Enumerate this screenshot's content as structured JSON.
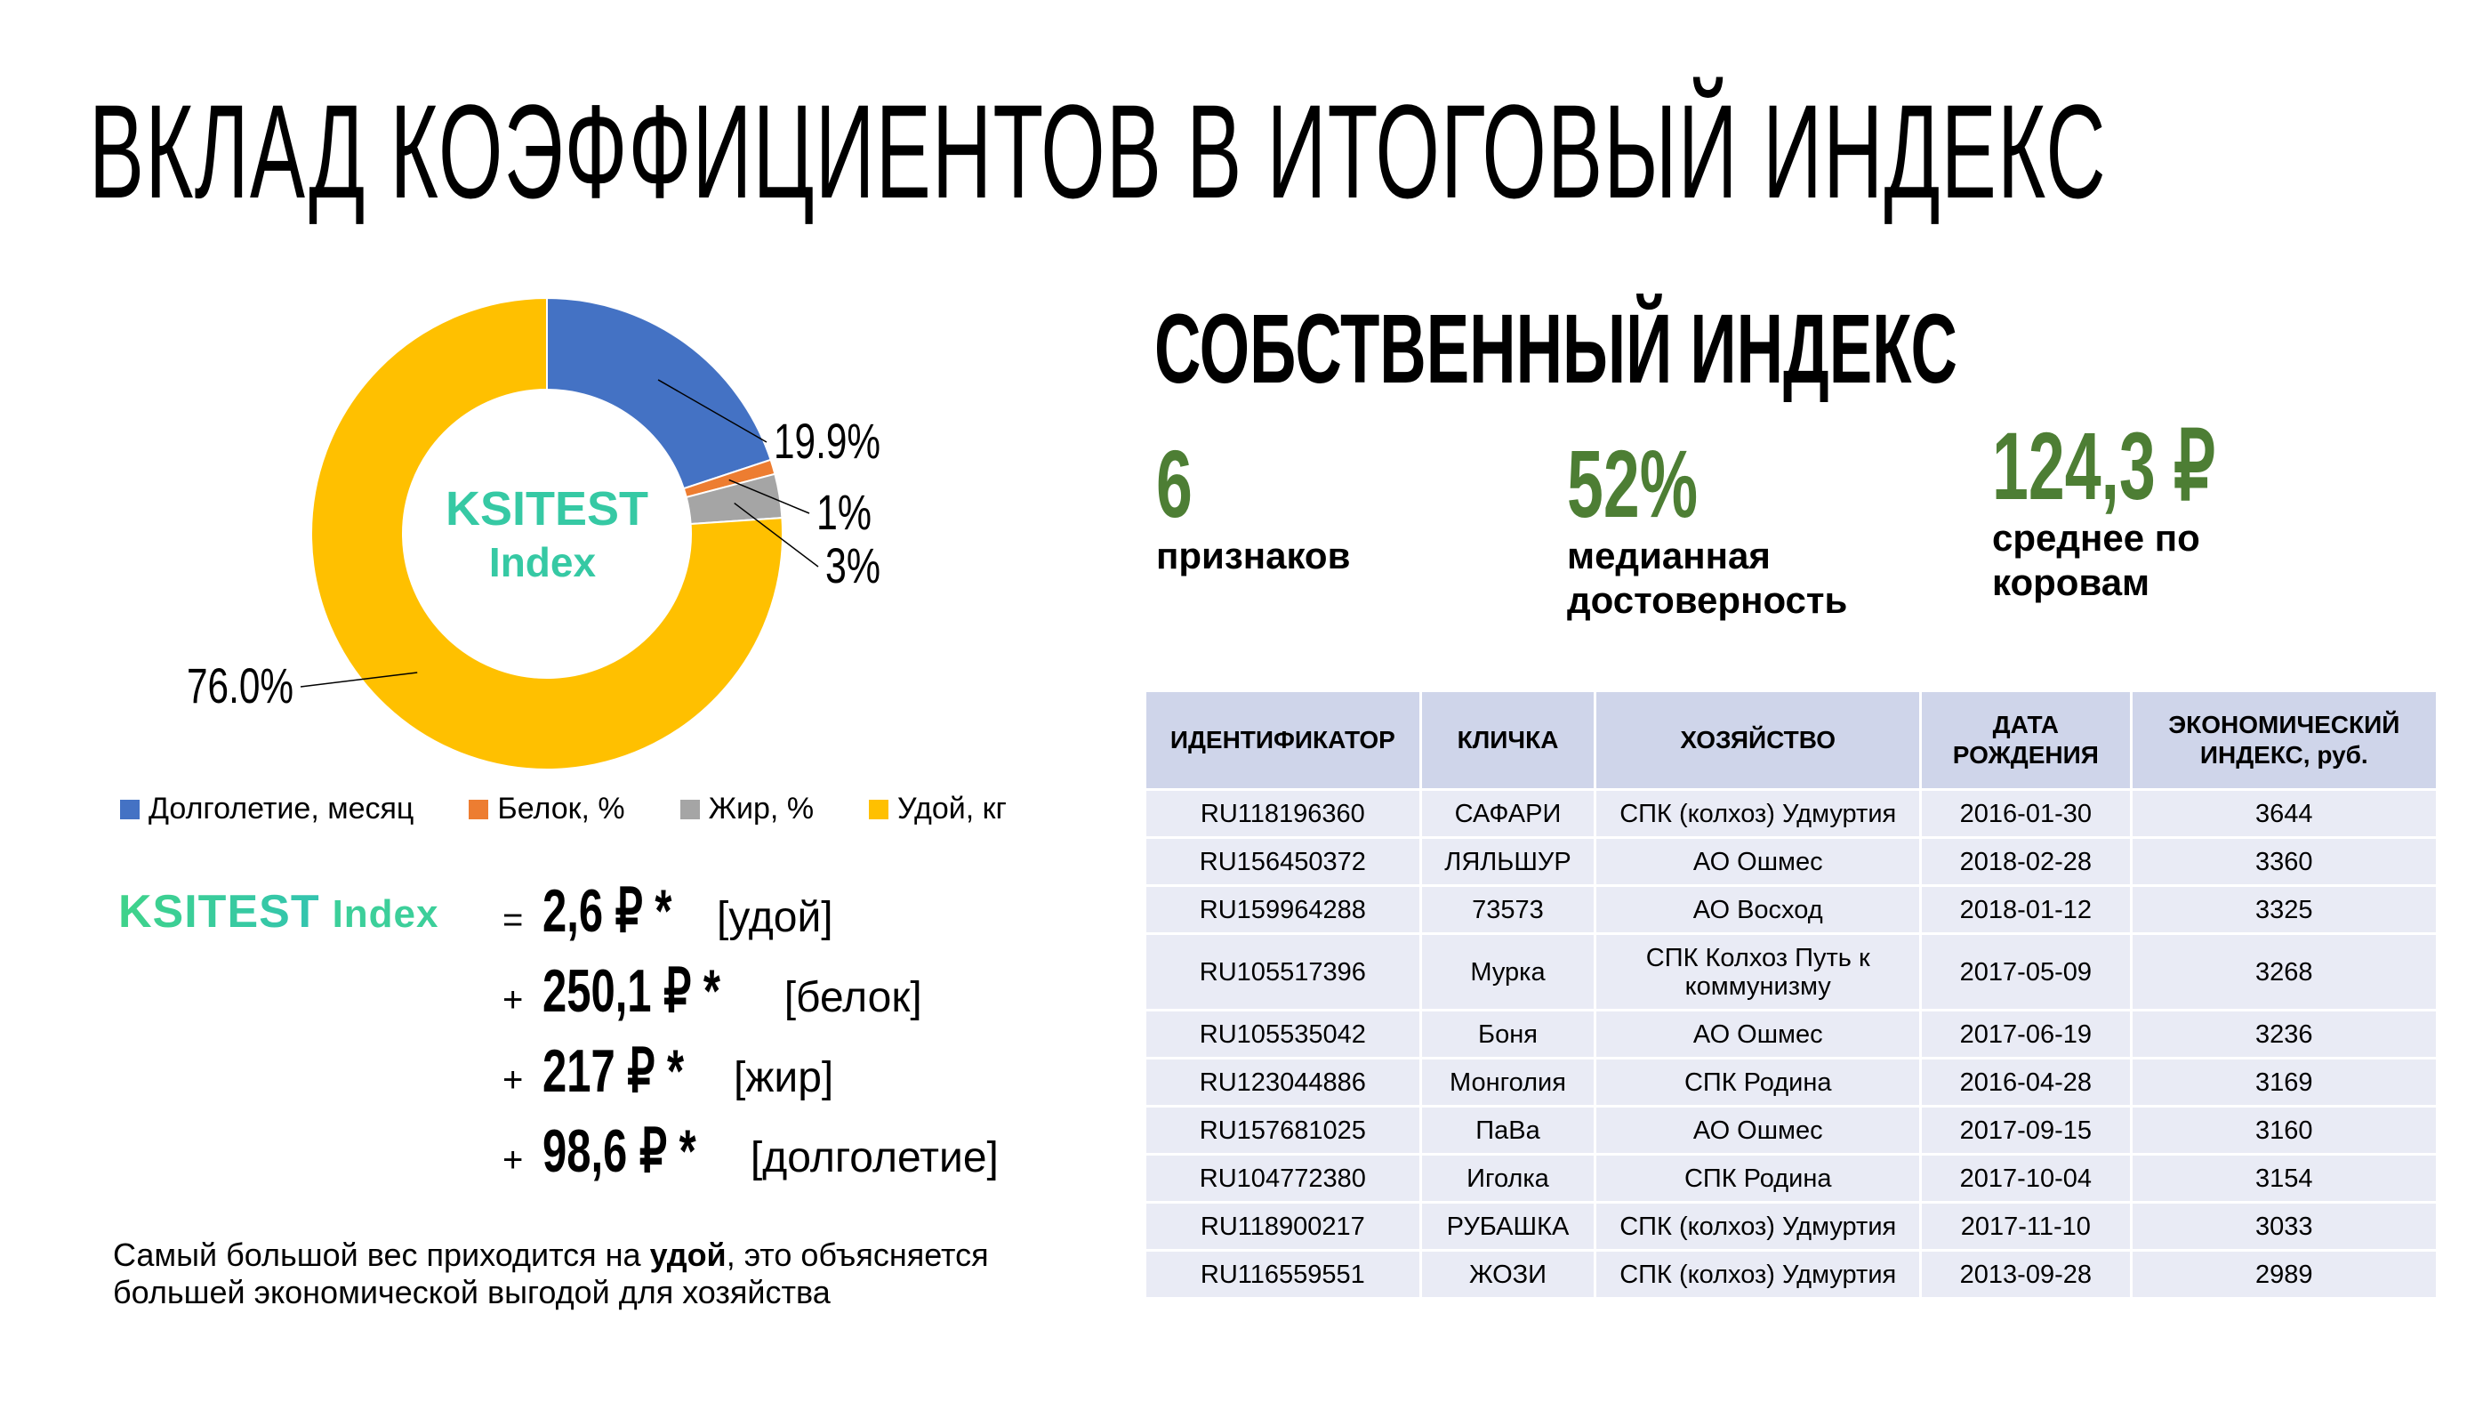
{
  "title": "ВКЛАД КОЭФФИЦИЕНТОВ В ИТОГОВЫЙ ИНДЕКС",
  "chart_data": {
    "type": "pie",
    "donut": true,
    "center_text": [
      "KSITEST",
      "Index"
    ],
    "categories": [
      "Долголетие, месяц",
      "Белок, %",
      "Жир, %",
      "Удой, кг"
    ],
    "values": [
      19.9,
      1,
      3,
      76.0
    ],
    "data_labels": [
      "19.9%",
      "1%",
      "3%",
      "76.0%"
    ],
    "colors": [
      "#4472C4",
      "#ED7D31",
      "#A5A5A5",
      "#FFC000"
    ],
    "legend_position": "bottom"
  },
  "formula": {
    "brand": "KSITEST",
    "brand_suffix": "Index",
    "lines": [
      {
        "op": "=",
        "coef": "2,6 ₽ *",
        "var": "[удой]"
      },
      {
        "op": "+",
        "coef": "250,1 ₽ *",
        "var": "[белок]"
      },
      {
        "op": "+",
        "coef": "217 ₽ *",
        "var": "[жир]"
      },
      {
        "op": "+",
        "coef": "98,6 ₽ *",
        "var": "[долголетие]"
      }
    ]
  },
  "footnote": {
    "before": "Самый большой вес приходится на ",
    "bold": "удой",
    "after": ", это объясняется большей экономической выгодой для хозяйства"
  },
  "own_index": {
    "heading": "СОБСТВЕННЫЙ ИНДЕКС",
    "stats": [
      {
        "value": "6",
        "label": "признаков"
      },
      {
        "value": "52%",
        "label": "медианная достоверность"
      },
      {
        "value": "124,3 ₽",
        "label": "среднее по коровам"
      }
    ],
    "accent_color": "#4d7e34"
  },
  "table": {
    "headers": [
      "ИДЕНТИФИКАТОР",
      "КЛИЧКА",
      "ХОЗЯЙСТВО",
      "ДАТА РОЖДЕНИЯ",
      "ЭКОНОМИЧЕСКИЙ ИНДЕКС, руб."
    ],
    "rows": [
      [
        "RU118196360",
        "САФАРИ",
        "СПК (колхоз) Удмуртия",
        "2016-01-30",
        "3644"
      ],
      [
        "RU156450372",
        "ЛЯЛЬШУР",
        "АО Ошмес",
        "2018-02-28",
        "3360"
      ],
      [
        "RU159964288",
        "73573",
        "АО Восход",
        "2018-01-12",
        "3325"
      ],
      [
        "RU105517396",
        "Мурка",
        "СПК Колхоз Путь к коммунизму",
        "2017-05-09",
        "3268"
      ],
      [
        "RU105535042",
        "Боня",
        "АО Ошмес",
        "2017-06-19",
        "3236"
      ],
      [
        "RU123044886",
        "Монголия",
        "СПК Родина",
        "2016-04-28",
        "3169"
      ],
      [
        "RU157681025",
        "ПаВа",
        "АО Ошмес",
        "2017-09-15",
        "3160"
      ],
      [
        "RU104772380",
        "Иголка",
        "СПК Родина",
        "2017-10-04",
        "3154"
      ],
      [
        "RU118900217",
        "РУБАШКА",
        "СПК (колхоз) Удмуртия",
        "2017-11-10",
        "3033"
      ],
      [
        "RU116559551",
        "ЖОЗИ",
        "СПК (колхоз) Удмуртия",
        "2013-09-28",
        "2989"
      ]
    ]
  }
}
